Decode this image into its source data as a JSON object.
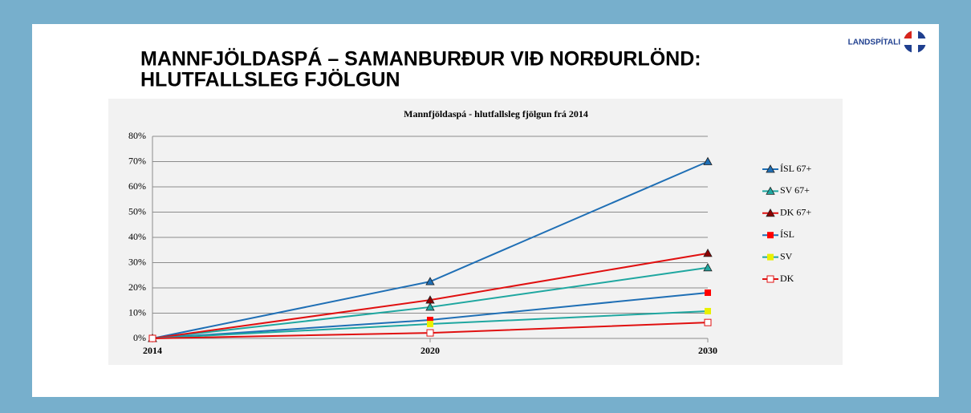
{
  "header": {
    "title_line1": "MANNFJÖLDASPÁ – SAMANBURÐUR VIÐ NORÐURLÖND:",
    "title_line2": "HLUTFALLSLEG FJÖLGUN",
    "logo": "LANDSPÍTALI"
  },
  "chart_data": {
    "type": "line",
    "title": "Mannfjöldaspá - hlutfallsleg fjölgun frá 2014",
    "categories": [
      "2014",
      "2020",
      "2030"
    ],
    "ylim": [
      0,
      80
    ],
    "yticks": [
      {
        "value": 0,
        "label": "0%"
      },
      {
        "value": 10,
        "label": "10%"
      },
      {
        "value": 20,
        "label": "20%"
      },
      {
        "value": 30,
        "label": "30%"
      },
      {
        "value": 40,
        "label": "40%"
      },
      {
        "value": 50,
        "label": "50%"
      },
      {
        "value": 60,
        "label": "60%"
      },
      {
        "value": 70,
        "label": "70%"
      },
      {
        "value": 80,
        "label": "80%"
      }
    ],
    "grid": true,
    "legend": "right",
    "series": [
      {
        "name": "ÍSL 67+",
        "color": "#1f6fb5",
        "marker": "triangle",
        "marker_color": "#1f6fb5",
        "values": [
          0,
          22.5,
          70
        ]
      },
      {
        "name": "SV 67+",
        "color": "#1fa7a0",
        "marker": "triangle",
        "marker_color": "#1fa7a0",
        "values": [
          0,
          12.4,
          28
        ]
      },
      {
        "name": "DK 67+",
        "color": "#e01010",
        "marker": "triangle",
        "marker_color": "#8b0000",
        "values": [
          0,
          15.2,
          33.7
        ]
      },
      {
        "name": "ÍSL",
        "color": "#1f6fb5",
        "marker": "square",
        "marker_color": "#ff0000",
        "values": [
          0,
          7.3,
          18.1
        ]
      },
      {
        "name": "SV",
        "color": "#1fa7a0",
        "marker": "square",
        "marker_color": "#e8f000",
        "values": [
          0,
          5.7,
          10.8
        ]
      },
      {
        "name": "DK",
        "color": "#e01010",
        "marker": "square",
        "marker_color": "#ffffff",
        "values": [
          0,
          2.2,
          6.3
        ]
      }
    ]
  }
}
